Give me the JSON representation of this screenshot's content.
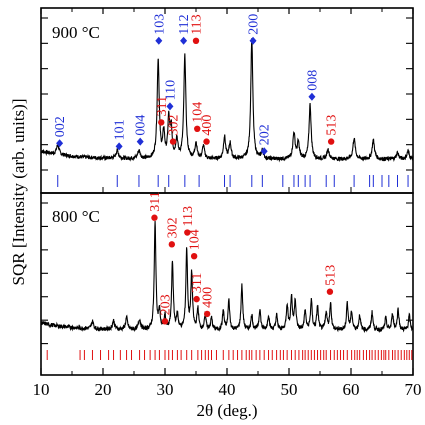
{
  "chart_data": {
    "type": "line",
    "xlabel": "2θ (deg.)",
    "ylabel": "SQR [Intensity (arb. units)]",
    "xlim": [
      10,
      70
    ],
    "x_ticks": [
      10,
      20,
      30,
      40,
      50,
      60,
      70
    ],
    "grid": false,
    "colors": {
      "trace": "#000000",
      "phase_blue": "#1f2fd6",
      "phase_red": "#e01010"
    },
    "panels": [
      {
        "title": "900 °C",
        "trace_baseline": 0.08,
        "trace_noise": 0.012,
        "peaks": [
          {
            "x": 12.7,
            "h": 0.06,
            "w": 0.25
          },
          {
            "x": 22.3,
            "h": 0.05,
            "w": 0.25
          },
          {
            "x": 25.8,
            "h": 0.05,
            "w": 0.25
          },
          {
            "x": 28.9,
            "h": 0.62,
            "w": 0.2
          },
          {
            "x": 29.8,
            "h": 0.16,
            "w": 0.18
          },
          {
            "x": 30.6,
            "h": 0.24,
            "w": 0.18
          },
          {
            "x": 31.0,
            "h": 0.18,
            "w": 0.18
          },
          {
            "x": 31.9,
            "h": 0.12,
            "w": 0.2
          },
          {
            "x": 33.2,
            "h": 0.64,
            "w": 0.2
          },
          {
            "x": 35.0,
            "h": 0.1,
            "w": 0.2
          },
          {
            "x": 36.2,
            "h": 0.08,
            "w": 0.2
          },
          {
            "x": 39.6,
            "h": 0.14,
            "w": 0.2
          },
          {
            "x": 40.5,
            "h": 0.1,
            "w": 0.2
          },
          {
            "x": 44.0,
            "h": 0.75,
            "w": 0.2
          },
          {
            "x": 45.7,
            "h": 0.05,
            "w": 0.2
          },
          {
            "x": 50.8,
            "h": 0.16,
            "w": 0.22
          },
          {
            "x": 51.5,
            "h": 0.1,
            "w": 0.2
          },
          {
            "x": 53.4,
            "h": 0.34,
            "w": 0.2
          },
          {
            "x": 56.3,
            "h": 0.06,
            "w": 0.22
          },
          {
            "x": 60.5,
            "h": 0.13,
            "w": 0.22
          },
          {
            "x": 63.6,
            "h": 0.12,
            "w": 0.22
          },
          {
            "x": 67.5,
            "h": 0.04,
            "w": 0.22
          },
          {
            "x": 69.2,
            "h": 0.05,
            "w": 0.22
          }
        ],
        "markers": [
          {
            "label": "002",
            "x": 13.0,
            "y": 0.18,
            "color": "blue"
          },
          {
            "label": "101",
            "x": 22.6,
            "y": 0.16,
            "color": "blue"
          },
          {
            "label": "004",
            "x": 26.0,
            "y": 0.19,
            "color": "blue"
          },
          {
            "label": "103",
            "x": 29.0,
            "y": 0.82,
            "color": "blue"
          },
          {
            "label": "110",
            "x": 30.8,
            "y": 0.41,
            "color": "blue"
          },
          {
            "label": "112",
            "x": 33.0,
            "y": 0.82,
            "color": "blue"
          },
          {
            "label": "200",
            "x": 44.2,
            "y": 0.82,
            "color": "blue"
          },
          {
            "label": "202",
            "x": 46.0,
            "y": 0.13,
            "color": "blue"
          },
          {
            "label": "008",
            "x": 53.7,
            "y": 0.47,
            "color": "blue"
          },
          {
            "label": "311",
            "x": 29.4,
            "y": 0.31,
            "color": "red"
          },
          {
            "label": "302",
            "x": 31.3,
            "y": 0.19,
            "color": "red"
          },
          {
            "label": "113",
            "x": 35.0,
            "y": 0.82,
            "color": "red"
          },
          {
            "label": "104",
            "x": 35.2,
            "y": 0.27,
            "color": "red"
          },
          {
            "label": "400",
            "x": 36.7,
            "y": 0.19,
            "color": "red"
          },
          {
            "label": "513",
            "x": 56.8,
            "y": 0.19,
            "color": "red"
          }
        ],
        "tick_rows": [
          {
            "color": "blue",
            "positions": [
              12.7,
              22.3,
              25.8,
              28.9,
              30.6,
              33.2,
              35.5,
              39.6,
              40.5,
              44.0,
              45.7,
              49.0,
              50.8,
              51.5,
              52.6,
              53.4,
              56.0,
              57.3,
              60.5,
              63.0,
              63.6,
              65.0,
              66.1,
              67.5,
              69.2
            ]
          }
        ]
      },
      {
        "title": "800 °C",
        "trace_baseline": 0.1,
        "trace_noise": 0.014,
        "peaks": [
          {
            "x": 18.3,
            "h": 0.05,
            "w": 0.2
          },
          {
            "x": 21.7,
            "h": 0.06,
            "w": 0.2
          },
          {
            "x": 23.8,
            "h": 0.08,
            "w": 0.2
          },
          {
            "x": 25.9,
            "h": 0.07,
            "w": 0.2
          },
          {
            "x": 28.4,
            "h": 0.72,
            "w": 0.16
          },
          {
            "x": 29.1,
            "h": 0.12,
            "w": 0.16
          },
          {
            "x": 30.0,
            "h": 0.09,
            "w": 0.16
          },
          {
            "x": 31.2,
            "h": 0.46,
            "w": 0.16
          },
          {
            "x": 32.0,
            "h": 0.1,
            "w": 0.16
          },
          {
            "x": 33.5,
            "h": 0.54,
            "w": 0.16
          },
          {
            "x": 34.3,
            "h": 0.38,
            "w": 0.16
          },
          {
            "x": 35.3,
            "h": 0.14,
            "w": 0.16
          },
          {
            "x": 36.5,
            "h": 0.1,
            "w": 0.16
          },
          {
            "x": 37.5,
            "h": 0.08,
            "w": 0.16
          },
          {
            "x": 39.4,
            "h": 0.13,
            "w": 0.16
          },
          {
            "x": 40.3,
            "h": 0.2,
            "w": 0.16
          },
          {
            "x": 42.4,
            "h": 0.3,
            "w": 0.16
          },
          {
            "x": 44.0,
            "h": 0.1,
            "w": 0.16
          },
          {
            "x": 45.3,
            "h": 0.14,
            "w": 0.16
          },
          {
            "x": 46.7,
            "h": 0.1,
            "w": 0.16
          },
          {
            "x": 48.0,
            "h": 0.1,
            "w": 0.16
          },
          {
            "x": 49.7,
            "h": 0.17,
            "w": 0.16
          },
          {
            "x": 50.4,
            "h": 0.22,
            "w": 0.16
          },
          {
            "x": 51.0,
            "h": 0.2,
            "w": 0.16
          },
          {
            "x": 52.6,
            "h": 0.13,
            "w": 0.16
          },
          {
            "x": 53.6,
            "h": 0.2,
            "w": 0.16
          },
          {
            "x": 54.6,
            "h": 0.16,
            "w": 0.16
          },
          {
            "x": 56.0,
            "h": 0.12,
            "w": 0.16
          },
          {
            "x": 56.7,
            "h": 0.18,
            "w": 0.16
          },
          {
            "x": 59.4,
            "h": 0.18,
            "w": 0.16
          },
          {
            "x": 60.1,
            "h": 0.12,
            "w": 0.16
          },
          {
            "x": 61.4,
            "h": 0.1,
            "w": 0.16
          },
          {
            "x": 63.4,
            "h": 0.12,
            "w": 0.16
          },
          {
            "x": 65.6,
            "h": 0.08,
            "w": 0.16
          },
          {
            "x": 66.7,
            "h": 0.11,
            "w": 0.16
          },
          {
            "x": 67.6,
            "h": 0.14,
            "w": 0.16
          },
          {
            "x": 69.4,
            "h": 0.1,
            "w": 0.16
          }
        ],
        "markers": [
          {
            "label": "311",
            "x": 28.3,
            "y": 0.86,
            "color": "red"
          },
          {
            "label": "302",
            "x": 31.1,
            "y": 0.68,
            "color": "red"
          },
          {
            "label": "113",
            "x": 33.6,
            "y": 0.76,
            "color": "red"
          },
          {
            "label": "104",
            "x": 34.7,
            "y": 0.6,
            "color": "red"
          },
          {
            "label": "203",
            "x": 30.0,
            "y": 0.16,
            "color": "red"
          },
          {
            "label": "311",
            "x": 35.1,
            "y": 0.31,
            "color": "red"
          },
          {
            "label": "400",
            "x": 36.8,
            "y": 0.21,
            "color": "red"
          },
          {
            "label": "513",
            "x": 56.6,
            "y": 0.36,
            "color": "red"
          }
        ],
        "tick_rows": [
          {
            "color": "red",
            "positions": [
              11.0,
              16.3,
              17.0,
              18.3,
              19.6,
              20.9,
              21.7,
              22.8,
              23.8,
              24.6,
              25.9,
              26.7,
              27.6,
              28.4,
              29.1,
              30.0,
              30.6,
              31.2,
              32.0,
              32.6,
              33.5,
              34.3,
              35.3,
              35.9,
              36.5,
              37.0,
              37.5,
              38.3,
              39.4,
              40.3,
              41.0,
              41.7,
              42.4,
              43.1,
              43.6,
              44.0,
              44.7,
              45.3,
              46.0,
              46.7,
              47.3,
              48.0,
              48.6,
              49.1,
              49.7,
              50.4,
              51.0,
              51.6,
              52.2,
              52.6,
              53.1,
              53.6,
              54.1,
              54.6,
              55.1,
              55.6,
              56.0,
              56.7,
              57.3,
              57.8,
              58.3,
              58.8,
              59.4,
              60.1,
              60.6,
              61.0,
              61.4,
              62.0,
              62.5,
              63.0,
              63.4,
              63.9,
              64.4,
              64.9,
              65.3,
              65.6,
              66.1,
              66.7,
              67.1,
              67.6,
              68.1,
              68.6,
              69.0,
              69.4,
              69.8
            ]
          }
        ]
      }
    ]
  }
}
